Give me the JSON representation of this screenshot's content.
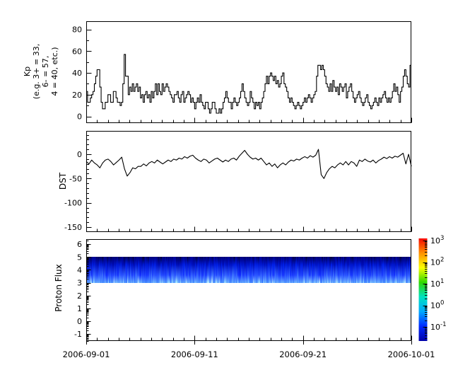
{
  "figure": {
    "background": "#ffffff",
    "axis_color": "#000000",
    "x_axis": {
      "tick_labels": [
        "2006-09-01",
        "2006-09-11",
        "2006-09-21",
        "2006-10-01"
      ],
      "tick_days": [
        0,
        10,
        20,
        30
      ],
      "minor_every_days": 1,
      "range_days": [
        0,
        30
      ]
    }
  },
  "chart_data": [
    {
      "type": "line",
      "name": "kp-index",
      "style": "step",
      "ylabel_lines": [
        "Kp",
        "(e.g. 3+ = 33,",
        "6- = 57,",
        "4 = 40, etc.)"
      ],
      "yticks": [
        0,
        20,
        40,
        60,
        80
      ],
      "ytick_minor": [
        10,
        30,
        50,
        70
      ],
      "ylim": [
        -6.5,
        87
      ],
      "x_start": "2006-09-01",
      "x_end": "2006-10-01",
      "cadence_hours": 3,
      "values": [
        23,
        13,
        13,
        17,
        20,
        23,
        30,
        37,
        43,
        43,
        27,
        13,
        7,
        7,
        13,
        13,
        20,
        20,
        13,
        13,
        23,
        23,
        17,
        13,
        13,
        10,
        13,
        30,
        57,
        37,
        37,
        20,
        27,
        23,
        30,
        23,
        27,
        30,
        23,
        27,
        17,
        20,
        13,
        20,
        23,
        17,
        20,
        13,
        23,
        17,
        23,
        30,
        20,
        30,
        23,
        20,
        30,
        23,
        27,
        30,
        27,
        23,
        20,
        17,
        13,
        20,
        20,
        23,
        17,
        13,
        20,
        23,
        13,
        17,
        20,
        23,
        20,
        13,
        17,
        13,
        7,
        13,
        17,
        13,
        20,
        13,
        10,
        7,
        13,
        13,
        7,
        3,
        7,
        13,
        13,
        7,
        3,
        3,
        7,
        3,
        7,
        13,
        17,
        23,
        17,
        13,
        13,
        7,
        13,
        17,
        13,
        10,
        13,
        17,
        23,
        30,
        23,
        17,
        13,
        10,
        13,
        23,
        17,
        13,
        7,
        13,
        10,
        13,
        7,
        13,
        17,
        23,
        30,
        37,
        30,
        37,
        40,
        37,
        33,
        37,
        30,
        33,
        27,
        30,
        37,
        40,
        30,
        27,
        23,
        17,
        13,
        17,
        13,
        10,
        7,
        10,
        13,
        10,
        7,
        10,
        13,
        17,
        13,
        17,
        20,
        17,
        13,
        17,
        20,
        23,
        37,
        47,
        47,
        43,
        47,
        43,
        37,
        30,
        27,
        23,
        30,
        23,
        33,
        27,
        23,
        27,
        20,
        30,
        27,
        23,
        27,
        30,
        17,
        23,
        27,
        30,
        23,
        17,
        13,
        17,
        20,
        23,
        17,
        13,
        10,
        13,
        17,
        20,
        13,
        10,
        7,
        10,
        13,
        17,
        13,
        10,
        17,
        13,
        17,
        20,
        23,
        17,
        13,
        17,
        13,
        17,
        23,
        30,
        23,
        27,
        20,
        13,
        23,
        27,
        37,
        43,
        37,
        30,
        27,
        47
      ]
    },
    {
      "type": "line",
      "name": "dst-index",
      "style": "line",
      "ylabel": "DST",
      "yticks": [
        0,
        -50,
        -100,
        -150
      ],
      "ytick_minor_step": 10,
      "ylim": [
        -160,
        48
      ],
      "x_start": "2006-09-01",
      "x_end": "2006-10-01",
      "cadence_hours": 6,
      "values": [
        -15,
        -20,
        -12,
        -18,
        -22,
        -28,
        -18,
        -12,
        -10,
        -15,
        -22,
        -17,
        -12,
        -6,
        -30,
        -45,
        -38,
        -28,
        -30,
        -25,
        -25,
        -20,
        -24,
        -18,
        -15,
        -18,
        -12,
        -16,
        -20,
        -16,
        -12,
        -15,
        -10,
        -12,
        -8,
        -10,
        -5,
        -8,
        -4,
        -2,
        -8,
        -12,
        -15,
        -10,
        -12,
        -18,
        -14,
        -10,
        -8,
        -12,
        -16,
        -12,
        -15,
        -10,
        -8,
        -12,
        -4,
        2,
        8,
        0,
        -6,
        -10,
        -8,
        -12,
        -8,
        -15,
        -22,
        -18,
        -25,
        -20,
        -28,
        -22,
        -18,
        -22,
        -16,
        -12,
        -14,
        -10,
        -12,
        -8,
        -5,
        -8,
        -3,
        -6,
        -2,
        10,
        -42,
        -50,
        -38,
        -30,
        -25,
        -28,
        -22,
        -18,
        -22,
        -15,
        -22,
        -15,
        -18,
        -25,
        -12,
        -15,
        -10,
        -14,
        -16,
        -12,
        -18,
        -13,
        -10,
        -6,
        -9,
        -5,
        -8,
        -4,
        -6,
        -2,
        2,
        -20,
        0,
        -25
      ]
    },
    {
      "type": "heatmap",
      "name": "proton-flux-spectrogram",
      "ylabel": "Proton Flux",
      "yticks": [
        -1,
        0,
        1,
        2,
        3,
        4,
        5,
        6
      ],
      "ylim": [
        -1.55,
        6.4
      ],
      "yscale_minor": "log-subdivisions",
      "band": {
        "y_from": 3,
        "y_to": 5,
        "description": "continuous blue band with vertical intensity streaks, darker at top, lighter at bottom edge"
      },
      "seed": 20060901,
      "colorbar": {
        "scale": "log",
        "tick_exponents": [
          3,
          2,
          1,
          0,
          -1
        ],
        "tick_labels": [
          "10^3",
          "10^2",
          "10^1",
          "10^0",
          "10^-1"
        ],
        "range_exponents": [
          -1.65,
          3.1
        ],
        "colormap": "rainbow",
        "colors_top_to_bottom": [
          "#f50800",
          "#ff9000",
          "#fbff00",
          "#2fd800",
          "#00e0c0",
          "#00a8ff",
          "#0028ff",
          "#0000a8"
        ]
      }
    }
  ]
}
